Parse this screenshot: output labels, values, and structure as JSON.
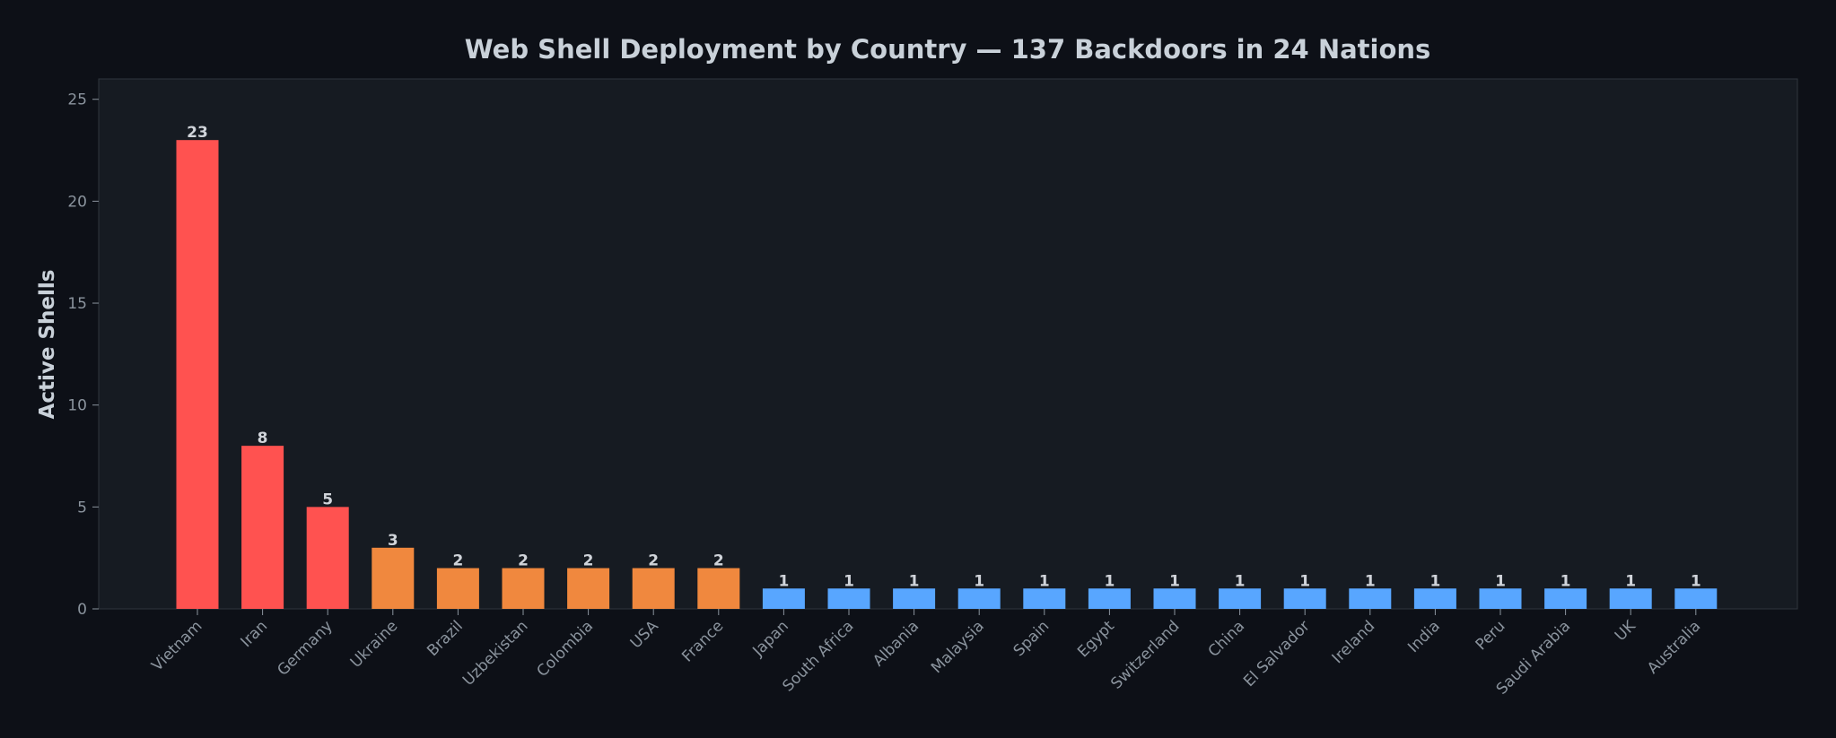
{
  "chart_data": {
    "type": "bar",
    "title": "Web Shell Deployment by Country — 137 Backdoors in 24 Nations",
    "xlabel": "",
    "ylabel": "Active Shells",
    "ylim": [
      0,
      26
    ],
    "yticks": [
      0,
      5,
      10,
      15,
      20,
      25
    ],
    "grid": false,
    "legend": "none",
    "categories": [
      "Vietnam",
      "Iran",
      "Germany",
      "Ukraine",
      "Brazil",
      "Uzbekistan",
      "Colombia",
      "USA",
      "France",
      "Japan",
      "South Africa",
      "Albania",
      "Malaysia",
      "Spain",
      "Egypt",
      "Switzerland",
      "China",
      "El Salvador",
      "Ireland",
      "India",
      "Peru",
      "Saudi Arabia",
      "UK",
      "Australia"
    ],
    "values": [
      23,
      8,
      5,
      3,
      2,
      2,
      2,
      2,
      2,
      1,
      1,
      1,
      1,
      1,
      1,
      1,
      1,
      1,
      1,
      1,
      1,
      1,
      1,
      1
    ],
    "colors": {
      "high": "#ff5250",
      "medium": "#f0883e",
      "low": "#58a6ff",
      "background": "#0d1017",
      "plot_background": "#161b22",
      "text": "#c9d1d9",
      "tick_text": "#8b949e",
      "axis": "#30363d"
    }
  }
}
